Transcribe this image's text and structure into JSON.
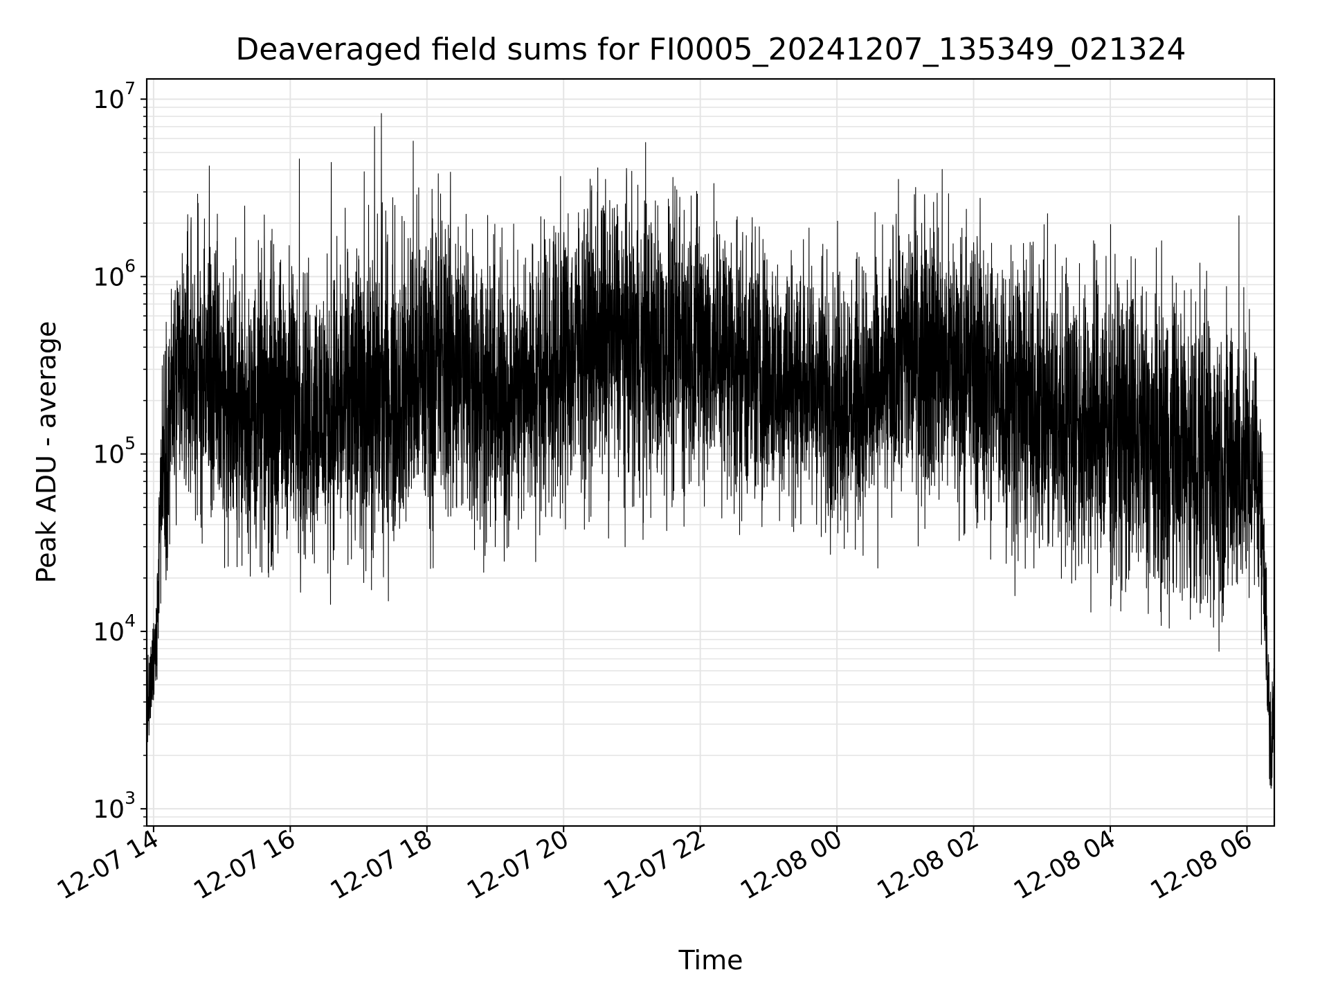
{
  "chart_data": {
    "type": "line",
    "title": "Deaveraged field sums for FI0005_20241207_135349_021324",
    "xlabel": "Time",
    "ylabel": "Peak ADU - average",
    "yscale": "log",
    "ylim": [
      800,
      13000000
    ],
    "xlim": [
      "2024-12-07 13:54",
      "2024-12-08 06:24"
    ],
    "x_ticks": [
      "12-07 14",
      "12-07 16",
      "12-07 18",
      "12-07 20",
      "12-07 22",
      "12-08 00",
      "12-08 02",
      "12-08 04",
      "12-08 06"
    ],
    "y_ticks": [
      {
        "value": 1000,
        "base": "10",
        "exp": "3"
      },
      {
        "value": 10000,
        "base": "10",
        "exp": "4"
      },
      {
        "value": 100000,
        "base": "10",
        "exp": "5"
      },
      {
        "value": 1000000,
        "base": "10",
        "exp": "6"
      },
      {
        "value": 10000000,
        "base": "10",
        "exp": "7"
      }
    ],
    "grid": true,
    "line_color": "#000000",
    "grid_color": "#e5e5e5",
    "series": [
      {
        "x": [
          "2024-12-07 13:54",
          "2024-12-07 13:58",
          "2024-12-07 14:02",
          "2024-12-07 14:06",
          "2024-12-07 14:10",
          "2024-12-07 14:15",
          "2024-12-07 14:20",
          "2024-12-07 14:30",
          "2024-12-07 14:40",
          "2024-12-07 14:50",
          "2024-12-07 15:00",
          "2024-12-07 15:15",
          "2024-12-07 15:30",
          "2024-12-07 15:45",
          "2024-12-07 16:00",
          "2024-12-07 16:20",
          "2024-12-07 16:40",
          "2024-12-07 17:00",
          "2024-12-07 17:20",
          "2024-12-07 17:40",
          "2024-12-07 18:00",
          "2024-12-07 18:20",
          "2024-12-07 18:40",
          "2024-12-07 19:00",
          "2024-12-07 19:20",
          "2024-12-07 19:40",
          "2024-12-07 20:00",
          "2024-12-07 20:20",
          "2024-12-07 20:40",
          "2024-12-07 21:00",
          "2024-12-07 21:20",
          "2024-12-07 21:40",
          "2024-12-07 22:00",
          "2024-12-07 22:20",
          "2024-12-07 22:40",
          "2024-12-07 23:00",
          "2024-12-07 23:20",
          "2024-12-07 23:40",
          "2024-12-08 00:00",
          "2024-12-08 00:20",
          "2024-12-08 00:40",
          "2024-12-08 01:00",
          "2024-12-08 01:20",
          "2024-12-08 01:40",
          "2024-12-08 02:00",
          "2024-12-08 02:20",
          "2024-12-08 02:40",
          "2024-12-08 03:00",
          "2024-12-08 03:20",
          "2024-12-08 03:40",
          "2024-12-08 04:00",
          "2024-12-08 04:20",
          "2024-12-08 04:40",
          "2024-12-08 05:00",
          "2024-12-08 05:20",
          "2024-12-08 05:40",
          "2024-12-08 06:00",
          "2024-12-08 06:10",
          "2024-12-08 06:15",
          "2024-12-08 06:18",
          "2024-12-08 06:21",
          "2024-12-08 06:24"
        ],
        "y": [
          3500,
          5000,
          8000,
          60000,
          110000,
          180000,
          220000,
          300000,
          280000,
          250000,
          200000,
          180000,
          170000,
          180000,
          200000,
          170000,
          180000,
          200000,
          220000,
          240000,
          300000,
          350000,
          280000,
          200000,
          230000,
          280000,
          350000,
          420000,
          450000,
          400000,
          380000,
          400000,
          420000,
          380000,
          320000,
          280000,
          260000,
          240000,
          220000,
          200000,
          230000,
          350000,
          380000,
          320000,
          300000,
          250000,
          200000,
          170000,
          160000,
          150000,
          140000,
          130000,
          110000,
          110000,
          95000,
          90000,
          90000,
          80000,
          30000,
          5000,
          2000,
          4000
        ],
        "spread_decades": [
          0.15,
          0.15,
          0.2,
          0.35,
          0.4,
          0.45,
          0.45,
          0.5,
          0.5,
          0.5,
          0.5,
          0.5,
          0.5,
          0.5,
          0.5,
          0.5,
          0.5,
          0.55,
          0.55,
          0.55,
          0.55,
          0.55,
          0.55,
          0.5,
          0.5,
          0.5,
          0.5,
          0.5,
          0.5,
          0.5,
          0.5,
          0.5,
          0.5,
          0.5,
          0.5,
          0.45,
          0.45,
          0.45,
          0.45,
          0.45,
          0.45,
          0.5,
          0.5,
          0.5,
          0.5,
          0.5,
          0.5,
          0.5,
          0.55,
          0.55,
          0.55,
          0.55,
          0.55,
          0.55,
          0.55,
          0.55,
          0.45,
          0.4,
          0.3,
          0.25,
          0.2,
          0.2
        ],
        "spikes": [
          {
            "x": "2024-12-07 14:33",
            "y": 2150000
          },
          {
            "x": "2024-12-07 14:49",
            "y": 4200000
          },
          {
            "x": "2024-12-07 14:56",
            "y": 2250000
          },
          {
            "x": "2024-12-07 15:20",
            "y": 2500000
          },
          {
            "x": "2024-12-07 15:44",
            "y": 1850000
          },
          {
            "x": "2024-12-07 16:08",
            "y": 4600000
          },
          {
            "x": "2024-12-07 16:36",
            "y": 4400000
          },
          {
            "x": "2024-12-07 17:05",
            "y": 3900000
          },
          {
            "x": "2024-12-07 17:14",
            "y": 7000000
          },
          {
            "x": "2024-12-07 17:20",
            "y": 8300000
          },
          {
            "x": "2024-12-07 17:48",
            "y": 5800000
          },
          {
            "x": "2024-12-07 18:10",
            "y": 3800000
          },
          {
            "x": "2024-12-07 20:30",
            "y": 4100000
          },
          {
            "x": "2024-12-07 21:12",
            "y": 5700000
          },
          {
            "x": "2024-12-07 21:42",
            "y": 2800000
          },
          {
            "x": "2024-12-07 21:52",
            "y": 2850000
          },
          {
            "x": "2024-12-08 01:08",
            "y": 2900000
          },
          {
            "x": "2024-12-08 01:17",
            "y": 2900000
          },
          {
            "x": "2024-12-08 01:28",
            "y": 2950000
          },
          {
            "x": "2024-12-08 05:53",
            "y": 2200000
          }
        ],
        "dips": [
          {
            "x": "2024-12-07 13:56",
            "y": 2600
          },
          {
            "x": "2024-12-07 17:13",
            "y": 26000
          },
          {
            "x": "2024-12-07 19:00",
            "y": 30000
          },
          {
            "x": "2024-12-07 21:10",
            "y": 41000
          },
          {
            "x": "2024-12-08 02:15",
            "y": 25500
          },
          {
            "x": "2024-12-08 03:35",
            "y": 24000
          },
          {
            "x": "2024-12-08 05:05",
            "y": 17500
          },
          {
            "x": "2024-12-08 05:28",
            "y": 12000
          },
          {
            "x": "2024-12-08 06:22",
            "y": 1500
          }
        ]
      }
    ]
  }
}
